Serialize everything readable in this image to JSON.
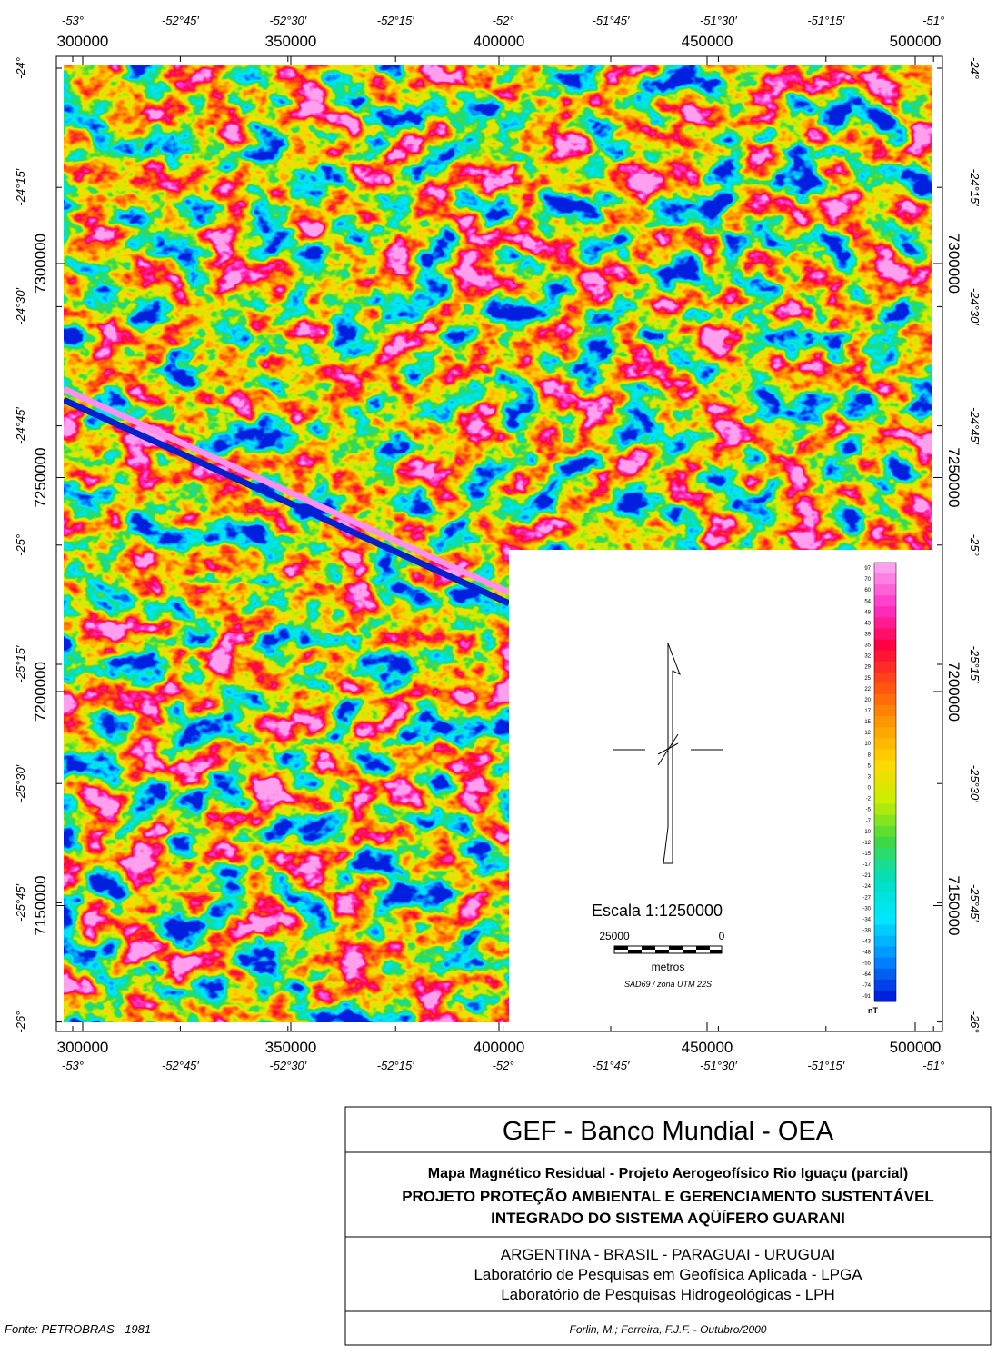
{
  "map": {
    "utm_x_labels": [
      "300000",
      "350000",
      "400000",
      "450000",
      "500000"
    ],
    "geo_x_labels": [
      "-53°",
      "-52°45′",
      "-52°30′",
      "-52°15′",
      "-52°",
      "-51°45′",
      "-51°30′",
      "-51°15′",
      "-51°"
    ],
    "utm_y_labels": [
      "7300000",
      "7250000",
      "7200000",
      "7150000"
    ],
    "geo_y_labels": [
      "-24°",
      "-24°15′",
      "-24°30′",
      "-24°45′",
      "-25°",
      "-25°15′",
      "-25°30′",
      "-25°45′",
      "-26°"
    ],
    "scale": "Escala 1:1250000",
    "scale_left": "25000",
    "scale_right": "0",
    "scale_unit": "metros",
    "datum": "SAD69 / zona UTM 22S",
    "legend": {
      "unit": "nT",
      "labels": [
        97,
        70,
        60,
        54,
        48,
        43,
        39,
        35,
        32,
        29,
        25,
        22,
        20,
        17,
        15,
        12,
        10,
        8,
        5,
        3,
        0,
        -2,
        -5,
        -7,
        -10,
        -12,
        -15,
        -17,
        -21,
        -24,
        -27,
        -30,
        -34,
        -38,
        -43,
        -48,
        -55,
        -64,
        -74,
        -91
      ],
      "color_ramp": [
        "#ffa0ee",
        "#ff30c8",
        "#ff0040",
        "#ff5010",
        "#ff9a00",
        "#ffd800",
        "#c8f000",
        "#40d840",
        "#00e0c0",
        "#00e8ff",
        "#0090ff",
        "#0020e0"
      ]
    }
  },
  "title_block": {
    "heading": "GEF - Banco Mundial - OEA",
    "subtitle": "Mapa Magnético Residual - Projeto Aerogeofísico Rio Iguaçu (parcial)",
    "project_line1": "PROJETO PROTEÇÃO AMBIENTAL E GERENCIAMENTO SUSTENTÁVEL",
    "project_line2": "INTEGRADO DO SISTEMA AQÜÍFERO GUARANI",
    "countries": "ARGENTINA - BRASIL - PARAGUAI - URUGUAI",
    "lab1": "Laboratório de Pesquisas em Geofísica Aplicada - LPGA",
    "lab2": "Laboratório de Pesquisas Hidrogeológicas - LPH",
    "authors": "Forlin, M.; Ferreira, F.J.F. - Outubro/2000"
  },
  "source": "Fonte: PETROBRAS - 1981"
}
